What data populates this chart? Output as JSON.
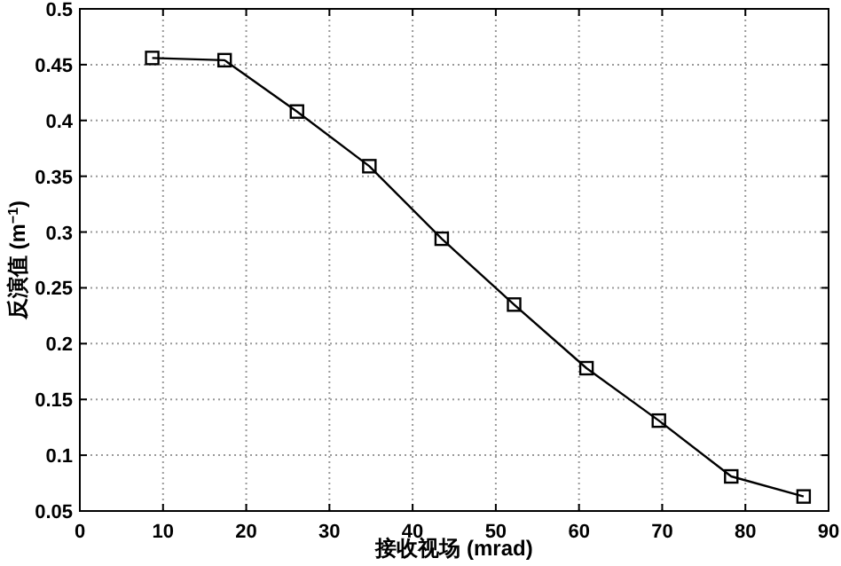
{
  "chart_data": {
    "type": "line",
    "xlabel": "接收视场 (mrad)",
    "ylabel": "反演值 (m$^{−1}$)",
    "x": [
      8.7,
      17.4,
      26.1,
      34.8,
      43.5,
      52.2,
      60.9,
      69.6,
      78.3,
      87
    ],
    "series": [
      {
        "color": "#000000",
        "values": [
          0.456,
          0.454,
          0.408,
          0.359,
          0.294,
          0.235,
          0.178,
          0.131,
          0.081,
          0.063
        ]
      }
    ],
    "xlim": [
      0,
      90
    ],
    "xticks": [
      0,
      10,
      20,
      30,
      40,
      50,
      60,
      70,
      80,
      90
    ],
    "ylim": [
      0.05,
      0.5
    ],
    "yticks": [
      0.05,
      0.1,
      0.15,
      0.2,
      0.25,
      0.3,
      0.35,
      0.4,
      0.45,
      0.5
    ],
    "grid": true,
    "marker": "square",
    "line_style": "solid"
  }
}
